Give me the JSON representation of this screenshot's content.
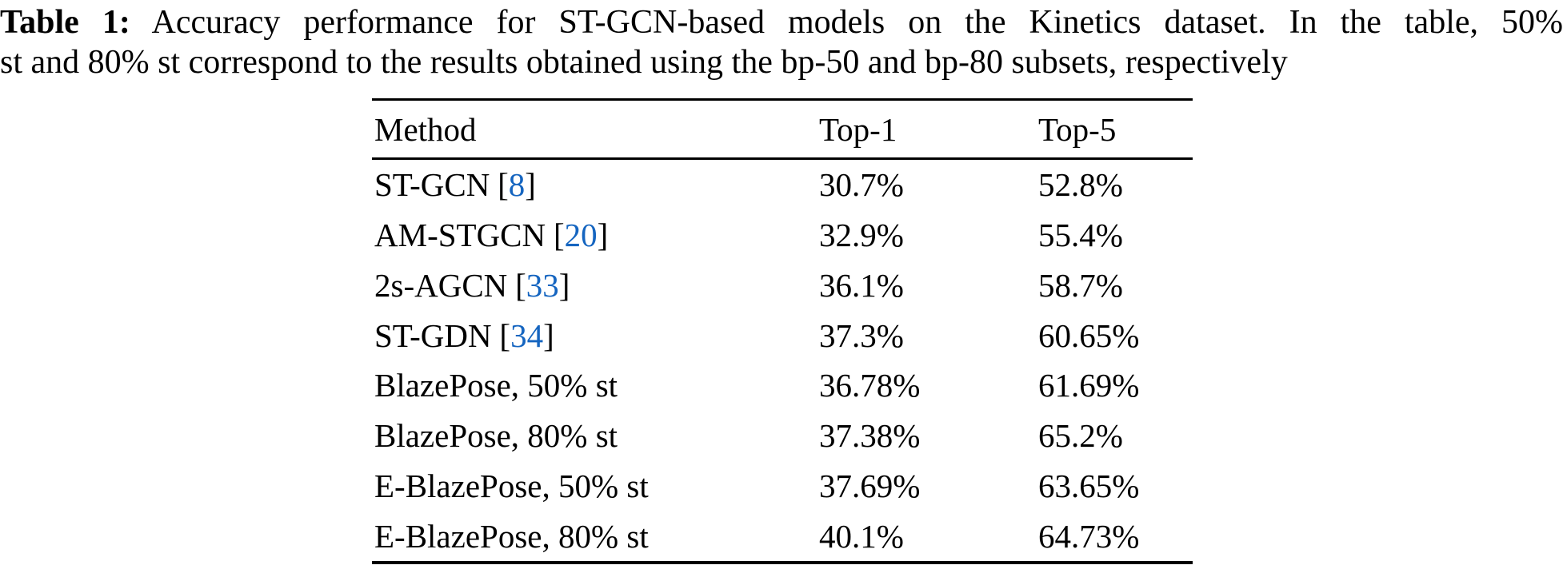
{
  "colors": {
    "citation": "#1565c0",
    "text": "#000000",
    "background": "#ffffff"
  },
  "punct": {
    "lbracket": "[",
    "rbracket": "]"
  },
  "caption": {
    "label": "Table 1:",
    "line1_rest": "Accuracy performance for ST-GCN-based models on the Kinetics dataset. In the table, 50%",
    "line2": "st and 80% st correspond to the results obtained using the bp-50 and bp-80 subsets, respectively"
  },
  "table": {
    "headers": {
      "method": "Method",
      "top1": "Top-1",
      "top5": "Top-5"
    },
    "rows": [
      {
        "method": "ST-GCN",
        "ref": "8",
        "top1": "30.7%",
        "top5": "52.8%"
      },
      {
        "method": "AM-STGCN",
        "ref": "20",
        "top1": "32.9%",
        "top5": "55.4%"
      },
      {
        "method": "2s-AGCN",
        "ref": "33",
        "top1": "36.1%",
        "top5": "58.7%"
      },
      {
        "method": "ST-GDN",
        "ref": "34",
        "top1": "37.3%",
        "top5": "60.65%"
      },
      {
        "method": "BlazePose, 50% st",
        "top1": "36.78%",
        "top5": "61.69%"
      },
      {
        "method": "BlazePose, 80% st",
        "top1": "37.38%",
        "top5": "65.2%"
      },
      {
        "method": "E-BlazePose, 50% st",
        "top1": "37.69%",
        "top5": "63.65%"
      },
      {
        "method": "E-BlazePose, 80% st",
        "top1": "40.1%",
        "top5": "64.73%"
      }
    ]
  }
}
